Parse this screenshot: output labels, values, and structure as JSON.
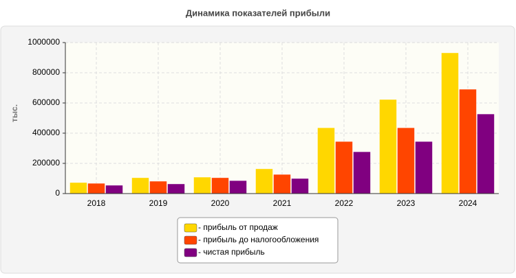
{
  "chart_data": {
    "type": "bar",
    "title": "Динамика показателей прибыли",
    "y_label": "тыс.",
    "categories": [
      "2018",
      "2019",
      "2020",
      "2021",
      "2022",
      "2023",
      "2024"
    ],
    "series": [
      {
        "name": "- прибыль от продаж",
        "color": "#ffd700",
        "values": [
          73000,
          105000,
          109000,
          164000,
          436000,
          623000,
          932000
        ]
      },
      {
        "name": "- прибыль до налогообложения",
        "color": "#ff4500",
        "values": [
          68000,
          82000,
          105000,
          127000,
          345000,
          436000,
          691000
        ]
      },
      {
        "name": "- чистая прибыль",
        "color": "#800080",
        "values": [
          55000,
          64000,
          86000,
          100000,
          277000,
          345000,
          527000
        ]
      }
    ],
    "ylim": [
      0,
      1000000
    ],
    "yticks": [
      0,
      200000,
      400000,
      600000,
      800000,
      1000000
    ],
    "grid": true,
    "legend": "bottom"
  }
}
